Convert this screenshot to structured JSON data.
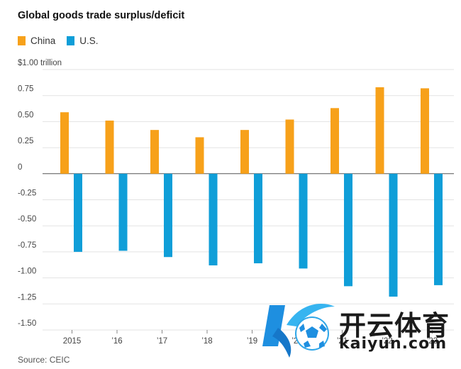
{
  "chart_data": {
    "type": "bar",
    "title": "Global goods trade surplus/deficit",
    "categories": [
      "2015",
      "’16",
      "’17",
      "’18",
      "’19",
      "’20",
      "’21",
      "’22",
      "’23"
    ],
    "series": [
      {
        "name": "China",
        "color": "#f7a11a",
        "values": [
          0.59,
          0.51,
          0.42,
          0.35,
          0.42,
          0.52,
          0.63,
          0.83,
          0.82
        ]
      },
      {
        "name": "U.S.",
        "color": "#0f9ed8",
        "values": [
          -0.75,
          -0.74,
          -0.8,
          -0.88,
          -0.86,
          -0.91,
          -1.08,
          -1.18,
          -1.07
        ]
      }
    ],
    "ylim": [
      -1.5,
      1.0
    ],
    "y_ticks": [
      {
        "value": 1.0,
        "label": "$1.00 trillion"
      },
      {
        "value": 0.75,
        "label": "0.75"
      },
      {
        "value": 0.5,
        "label": "0.50"
      },
      {
        "value": 0.25,
        "label": "0.25"
      },
      {
        "value": 0,
        "label": "0"
      },
      {
        "value": -0.25,
        "label": "-0.25"
      },
      {
        "value": -0.5,
        "label": "-0.50"
      },
      {
        "value": -0.75,
        "label": "-0.75"
      },
      {
        "value": -1.0,
        "label": "-1.00"
      },
      {
        "value": -1.25,
        "label": "-1.25"
      },
      {
        "value": -1.5,
        "label": "-1.50"
      }
    ],
    "grid": true,
    "legend_position": "top-left",
    "source": "Source: CEIC"
  },
  "watermark": {
    "cn": "开云体育",
    "en": "kaiyun.com"
  }
}
